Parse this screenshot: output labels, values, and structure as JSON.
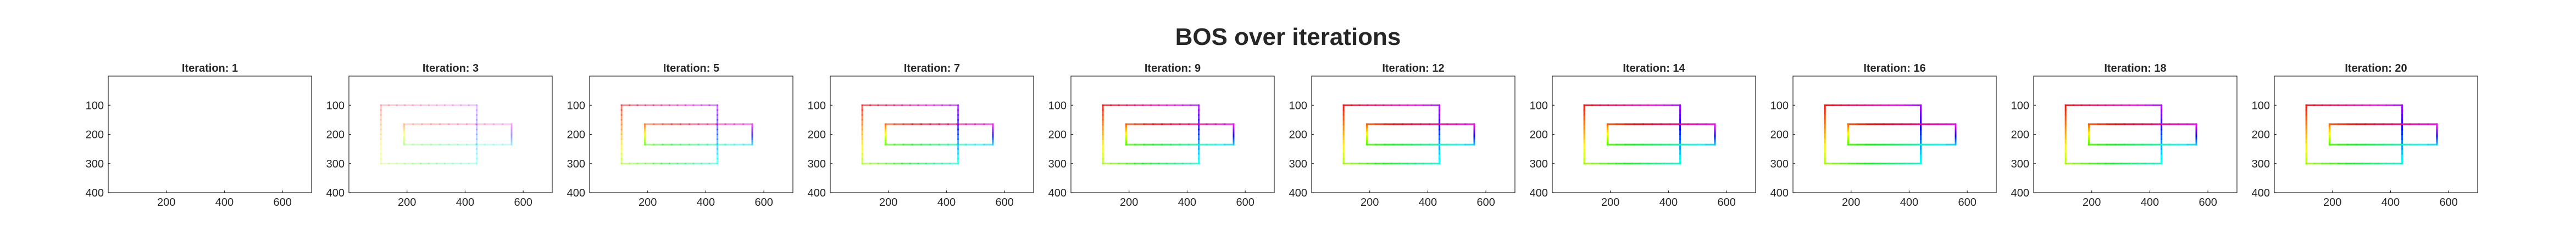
{
  "figure": {
    "title": "BOS over iterations"
  },
  "colors": {
    "axis": "#262626",
    "background": "#ffffff"
  },
  "chart_data": {
    "type": "line",
    "title": "BOS over iterations",
    "panel_title_prefix": "Iteration: ",
    "xlim": [
      0,
      700
    ],
    "ylim": [
      400,
      0
    ],
    "y_reversed": true,
    "xticks": [
      200,
      400,
      600
    ],
    "yticks": [
      100,
      200,
      300,
      400
    ],
    "grid": false,
    "shape": {
      "outer_rect": {
        "x": [
          110,
          440
        ],
        "y": [
          100,
          300
        ]
      },
      "inner_rect": {
        "x": [
          190,
          560
        ],
        "y": [
          165,
          235
        ]
      }
    },
    "panels": [
      {
        "iteration": "1",
        "opacity": 0.0
      },
      {
        "iteration": "3",
        "opacity": 0.22
      },
      {
        "iteration": "5",
        "opacity": 0.5
      },
      {
        "iteration": "7",
        "opacity": 0.65
      },
      {
        "iteration": "9",
        "opacity": 0.8
      },
      {
        "iteration": "12",
        "opacity": 0.9
      },
      {
        "iteration": "14",
        "opacity": 0.95
      },
      {
        "iteration": "16",
        "opacity": 1.0
      },
      {
        "iteration": "18",
        "opacity": 0.95
      },
      {
        "iteration": "20",
        "opacity": 0.95
      }
    ]
  }
}
